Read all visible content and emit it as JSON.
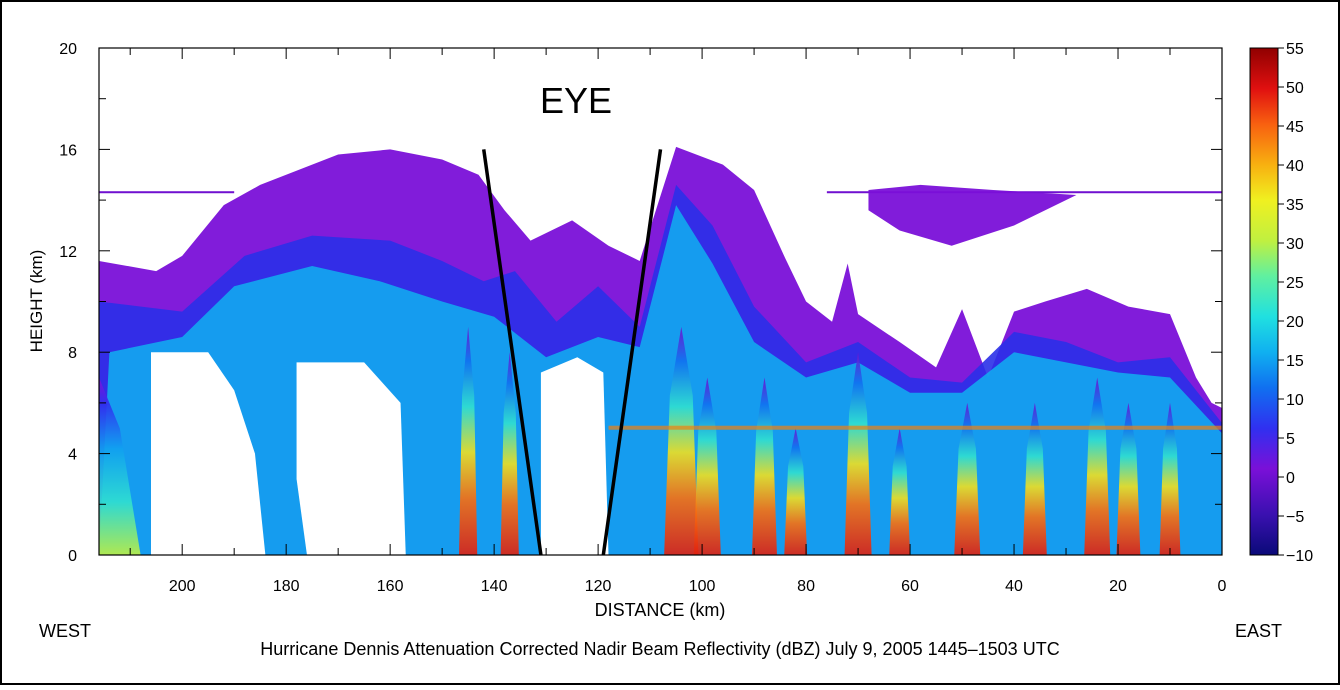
{
  "chart_data": {
    "type": "heatmap",
    "title": "Hurricane Dennis Attenuation Corrected Nadir Beam Reflectivity (dBZ) July 9, 2005 1445–1503 UTC",
    "xlabel": "DISTANCE (km)",
    "ylabel": "HEIGHT (km)",
    "xlim": [
      216,
      0
    ],
    "ylim": [
      0,
      20
    ],
    "x_ticks": [
      "200",
      "180",
      "160",
      "140",
      "120",
      "100",
      "80",
      "60",
      "40",
      "20",
      "0"
    ],
    "y_ticks": [
      "0",
      "4",
      "8",
      "12",
      "16",
      "20"
    ],
    "west_label": "WEST",
    "east_label": "EAST",
    "eye_label": "EYE",
    "colorbar": {
      "min": -10,
      "max": 55,
      "ticks": [
        "55",
        "50",
        "45",
        "40",
        "35",
        "30",
        "25",
        "20",
        "15",
        "10",
        "5",
        "0",
        "−5",
        "−10"
      ]
    },
    "eye_walls": [
      {
        "name": "west-eyewall",
        "top": [
          142,
          16
        ],
        "bottom": [
          131,
          0
        ]
      },
      {
        "name": "east-eyewall",
        "top": [
          108,
          16
        ],
        "bottom": [
          119,
          0
        ]
      }
    ]
  }
}
